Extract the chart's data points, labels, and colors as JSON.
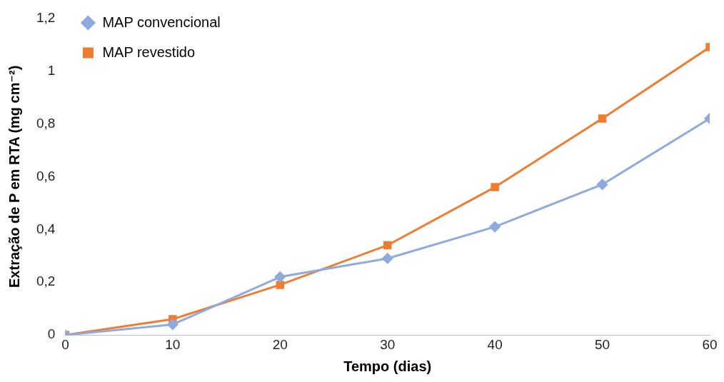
{
  "chart_data": {
    "type": "line",
    "xlabel": "Tempo (dias)",
    "ylabel": "Extração de P em RTA (mg cm⁻²)",
    "x": [
      0,
      10,
      20,
      30,
      40,
      50,
      60
    ],
    "series": [
      {
        "name": "MAP convencional",
        "color": "#8faadc",
        "marker": "diamond",
        "values": [
          0,
          0.04,
          0.22,
          0.29,
          0.41,
          0.57,
          0.82
        ]
      },
      {
        "name": "MAP revestido",
        "color": "#ed7d31",
        "marker": "square",
        "values": [
          0,
          0.06,
          0.19,
          0.34,
          0.56,
          0.82,
          1.09
        ]
      }
    ],
    "xlim": [
      0,
      60
    ],
    "xticks": [
      0,
      10,
      20,
      30,
      40,
      50,
      60
    ],
    "ylim": [
      0,
      1.2
    ],
    "yticks": [
      0,
      {
        "value": 0.2,
        "label": "0,2"
      },
      {
        "value": 0.4,
        "label": "0,4"
      },
      {
        "value": 0.6,
        "label": "0,6"
      },
      {
        "value": 0.8,
        "label": "0,8"
      },
      1,
      {
        "value": 1.2,
        "label": "1,2"
      }
    ],
    "grid": false,
    "legend": "top left",
    "line_style": "solid"
  }
}
